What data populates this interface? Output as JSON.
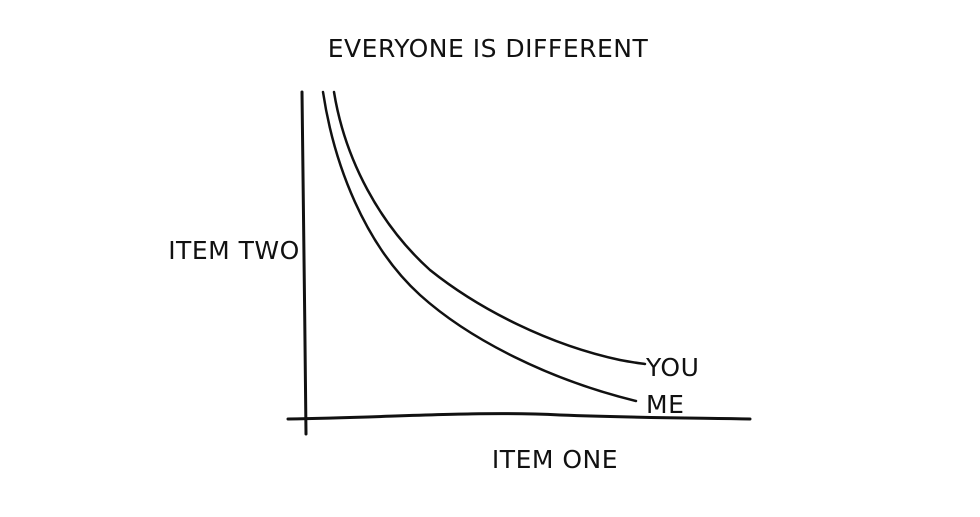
{
  "chart_data": {
    "type": "line",
    "title": "EVERYONE IS DIFFERENT",
    "xlabel": "ITEM ONE",
    "ylabel": "ITEM TWO",
    "grid": false,
    "ticks": false,
    "series": [
      {
        "name": "YOU"
      },
      {
        "name": "ME"
      }
    ],
    "annotations": [
      "YOU",
      "ME"
    ]
  }
}
